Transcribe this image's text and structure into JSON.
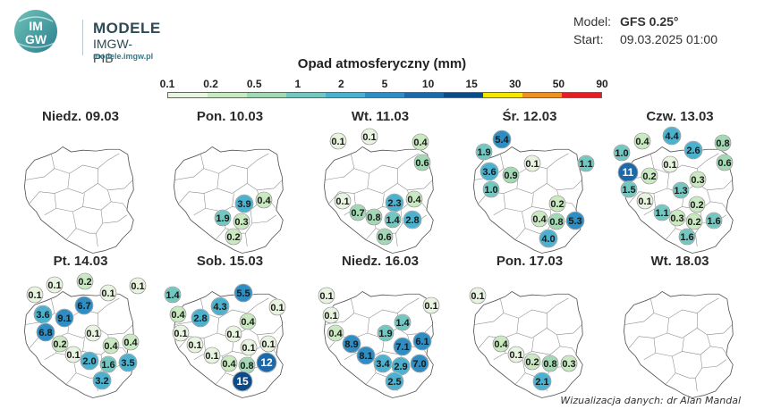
{
  "header": {
    "logo": {
      "letters": "IMGW",
      "title": "MODELE",
      "subtitle": "IMGW-PIB",
      "url": "modele.imgw.pl"
    },
    "model_label": "Model:",
    "model_value": "GFS 0.25°",
    "start_label": "Start:",
    "start_value": "09.03.2025 01:00"
  },
  "legend": {
    "title": "Opad atmosferyczny (mm)",
    "ticks": [
      "0.1",
      "0.2",
      "0.5",
      "1",
      "2",
      "5",
      "10",
      "15",
      "30",
      "50",
      "90"
    ],
    "colors": [
      "#e8f4df",
      "#c9e9c0",
      "#a2d9b4",
      "#72c7c1",
      "#4cb1ce",
      "#2e8dc2",
      "#1d68a8",
      "#0c4a8a",
      "#f5e600",
      "#f09022",
      "#e21f26"
    ]
  },
  "panels": [
    {
      "title": "Niedz. 09.03",
      "points": []
    },
    {
      "title": "Pon. 10.03",
      "points": [
        {
          "v": "3.9",
          "x": 91,
          "y": 106,
          "r": 10
        },
        {
          "v": "0.4",
          "x": 113,
          "y": 102,
          "r": 9
        },
        {
          "v": "1.9",
          "x": 67,
          "y": 122,
          "r": 9
        },
        {
          "v": "0.3",
          "x": 88,
          "y": 126,
          "r": 9
        },
        {
          "v": "0.2",
          "x": 79,
          "y": 143,
          "r": 9
        }
      ]
    },
    {
      "title": "Wt. 11.03",
      "points": [
        {
          "v": "0.1",
          "x": 28,
          "y": 36,
          "r": 9
        },
        {
          "v": "0.1",
          "x": 63,
          "y": 31,
          "r": 9
        },
        {
          "v": "0.4",
          "x": 120,
          "y": 37,
          "r": 9
        },
        {
          "v": "0.6",
          "x": 122,
          "y": 60,
          "r": 9
        },
        {
          "v": "0.1",
          "x": 33,
          "y": 103,
          "r": 9
        },
        {
          "v": "2.3",
          "x": 91,
          "y": 105,
          "r": 10
        },
        {
          "v": "0.4",
          "x": 113,
          "y": 101,
          "r": 9
        },
        {
          "v": "0.7",
          "x": 50,
          "y": 116,
          "r": 9
        },
        {
          "v": "0.8",
          "x": 68,
          "y": 121,
          "r": 9
        },
        {
          "v": "1.4",
          "x": 89,
          "y": 124,
          "r": 9
        },
        {
          "v": "2.8",
          "x": 111,
          "y": 124,
          "r": 10
        },
        {
          "v": "0.6",
          "x": 80,
          "y": 143,
          "r": 9
        }
      ]
    },
    {
      "title": "Śr. 12.03",
      "points": [
        {
          "v": "5.4",
          "x": 44,
          "y": 34,
          "r": 10
        },
        {
          "v": "1.9",
          "x": 24,
          "y": 48,
          "r": 9
        },
        {
          "v": "3.6",
          "x": 30,
          "y": 70,
          "r": 10
        },
        {
          "v": "0.9",
          "x": 54,
          "y": 74,
          "r": 9
        },
        {
          "v": "0.1",
          "x": 78,
          "y": 61,
          "r": 9
        },
        {
          "v": "1.1",
          "x": 138,
          "y": 61,
          "r": 9
        },
        {
          "v": "1.0",
          "x": 32,
          "y": 90,
          "r": 9
        },
        {
          "v": "0.2",
          "x": 106,
          "y": 106,
          "r": 9
        },
        {
          "v": "0.4",
          "x": 86,
          "y": 123,
          "r": 9
        },
        {
          "v": "0.8",
          "x": 105,
          "y": 126,
          "r": 9
        },
        {
          "v": "5.3",
          "x": 126,
          "y": 125,
          "r": 10
        },
        {
          "v": "4.0",
          "x": 96,
          "y": 145,
          "r": 10
        }
      ]
    },
    {
      "title": "Czw. 13.03",
      "points": [
        {
          "v": "4.4",
          "x": 66,
          "y": 30,
          "r": 10
        },
        {
          "v": "0.4",
          "x": 33,
          "y": 36,
          "r": 9
        },
        {
          "v": "0.8",
          "x": 123,
          "y": 38,
          "r": 9
        },
        {
          "v": "1.0",
          "x": 10,
          "y": 49,
          "r": 9
        },
        {
          "v": "2.6",
          "x": 90,
          "y": 46,
          "r": 10
        },
        {
          "v": "0.6",
          "x": 125,
          "y": 60,
          "r": 9
        },
        {
          "v": "0.1",
          "x": 64,
          "y": 62,
          "r": 9
        },
        {
          "v": "11",
          "x": 17,
          "y": 71,
          "r": 11
        },
        {
          "v": "0.2",
          "x": 41,
          "y": 75,
          "r": 9
        },
        {
          "v": "0.3",
          "x": 95,
          "y": 79,
          "r": 9
        },
        {
          "v": "1.5",
          "x": 18,
          "y": 90,
          "r": 9
        },
        {
          "v": "1.3",
          "x": 76,
          "y": 91,
          "r": 9
        },
        {
          "v": "0.1",
          "x": 36,
          "y": 103,
          "r": 9
        },
        {
          "v": "0.2",
          "x": 94,
          "y": 107,
          "r": 9
        },
        {
          "v": "1.1",
          "x": 55,
          "y": 116,
          "r": 9
        },
        {
          "v": "0.3",
          "x": 72,
          "y": 122,
          "r": 9
        },
        {
          "v": "0.2",
          "x": 91,
          "y": 126,
          "r": 9
        },
        {
          "v": "1.6",
          "x": 113,
          "y": 125,
          "r": 9
        },
        {
          "v": "1.6",
          "x": 83,
          "y": 143,
          "r": 9
        }
      ]
    },
    {
      "title": "Pt. 14.03",
      "points": [
        {
          "v": "0.1",
          "x": 46,
          "y": 35,
          "r": 9
        },
        {
          "v": "0.2",
          "x": 80,
          "y": 31,
          "r": 9
        },
        {
          "v": "0.1",
          "x": 139,
          "y": 36,
          "r": 9
        },
        {
          "v": "0.1",
          "x": 24,
          "y": 46,
          "r": 9
        },
        {
          "v": "0.1",
          "x": 106,
          "y": 44,
          "r": 9
        },
        {
          "v": "6.7",
          "x": 79,
          "y": 58,
          "r": 10
        },
        {
          "v": "3.6",
          "x": 33,
          "y": 68,
          "r": 10
        },
        {
          "v": "9.1",
          "x": 57,
          "y": 72,
          "r": 10
        },
        {
          "v": "6.8",
          "x": 36,
          "y": 88,
          "r": 10
        },
        {
          "v": "0.1",
          "x": 89,
          "y": 89,
          "r": 9
        },
        {
          "v": "0.2",
          "x": 52,
          "y": 101,
          "r": 9
        },
        {
          "v": "0.4",
          "x": 109,
          "y": 103,
          "r": 9
        },
        {
          "v": "0.4",
          "x": 131,
          "y": 99,
          "r": 9
        },
        {
          "v": "0.1",
          "x": 67,
          "y": 113,
          "r": 9
        },
        {
          "v": "2.0",
          "x": 85,
          "y": 120,
          "r": 10
        },
        {
          "v": "1.6",
          "x": 106,
          "y": 124,
          "r": 9
        },
        {
          "v": "3.5",
          "x": 128,
          "y": 122,
          "r": 10
        },
        {
          "v": "3.2",
          "x": 99,
          "y": 142,
          "r": 10
        }
      ]
    },
    {
      "title": "Sob. 15.03",
      "points": [
        {
          "v": "1.4",
          "x": 11,
          "y": 46,
          "r": 9
        },
        {
          "v": "5.5",
          "x": 90,
          "y": 44,
          "r": 10
        },
        {
          "v": "4.3",
          "x": 64,
          "y": 59,
          "r": 10
        },
        {
          "v": "0.1",
          "x": 128,
          "y": 60,
          "r": 9
        },
        {
          "v": "0.4",
          "x": 17,
          "y": 68,
          "r": 9
        },
        {
          "v": "2.8",
          "x": 42,
          "y": 72,
          "r": 10
        },
        {
          "v": "0.4",
          "x": 95,
          "y": 76,
          "r": 9
        },
        {
          "v": "0.1",
          "x": 20,
          "y": 89,
          "r": 9
        },
        {
          "v": "0.1",
          "x": 79,
          "y": 90,
          "r": 9
        },
        {
          "v": "0.1",
          "x": 36,
          "y": 102,
          "r": 9
        },
        {
          "v": "0.1",
          "x": 96,
          "y": 105,
          "r": 9
        },
        {
          "v": "0.1",
          "x": 118,
          "y": 101,
          "r": 9
        },
        {
          "v": "0.1",
          "x": 55,
          "y": 114,
          "r": 9
        },
        {
          "v": "0.4",
          "x": 74,
          "y": 123,
          "r": 9
        },
        {
          "v": "0.8",
          "x": 94,
          "y": 125,
          "r": 9
        },
        {
          "v": "12",
          "x": 116,
          "y": 122,
          "r": 11
        },
        {
          "v": "15",
          "x": 89,
          "y": 143,
          "r": 11
        }
      ]
    },
    {
      "title": "Niedz. 16.03",
      "points": [
        {
          "v": "0.1",
          "x": 15,
          "y": 47,
          "r": 9
        },
        {
          "v": "0.1",
          "x": 132,
          "y": 58,
          "r": 9
        },
        {
          "v": "0.1",
          "x": 20,
          "y": 69,
          "r": 9
        },
        {
          "v": "1.4",
          "x": 100,
          "y": 77,
          "r": 9
        },
        {
          "v": "0.4",
          "x": 25,
          "y": 89,
          "r": 9
        },
        {
          "v": "1.9",
          "x": 81,
          "y": 89,
          "r": 9
        },
        {
          "v": "6.1",
          "x": 122,
          "y": 98,
          "r": 10
        },
        {
          "v": "8.9",
          "x": 43,
          "y": 101,
          "r": 10
        },
        {
          "v": "7.1",
          "x": 100,
          "y": 104,
          "r": 10
        },
        {
          "v": "8.1",
          "x": 59,
          "y": 114,
          "r": 10
        },
        {
          "v": "3.4",
          "x": 78,
          "y": 123,
          "r": 10
        },
        {
          "v": "2.9",
          "x": 98,
          "y": 126,
          "r": 10
        },
        {
          "v": "7.0",
          "x": 119,
          "y": 123,
          "r": 10
        },
        {
          "v": "2.5",
          "x": 91,
          "y": 143,
          "r": 10
        }
      ]
    },
    {
      "title": "Pon. 17.03",
      "points": [
        {
          "v": "0.1",
          "x": 17,
          "y": 47,
          "r": 9
        },
        {
          "v": "0.4",
          "x": 43,
          "y": 101,
          "r": 9
        },
        {
          "v": "0.1",
          "x": 60,
          "y": 113,
          "r": 9
        },
        {
          "v": "0.2",
          "x": 78,
          "y": 121,
          "r": 9
        },
        {
          "v": "0.8",
          "x": 98,
          "y": 123,
          "r": 9
        },
        {
          "v": "0.3",
          "x": 119,
          "y": 123,
          "r": 9
        },
        {
          "v": "2.1",
          "x": 89,
          "y": 143,
          "r": 10
        }
      ]
    },
    {
      "title": "Wt. 18.03",
      "points": []
    }
  ],
  "credit": "Wizualizacja danych: dr Alan Mandal"
}
